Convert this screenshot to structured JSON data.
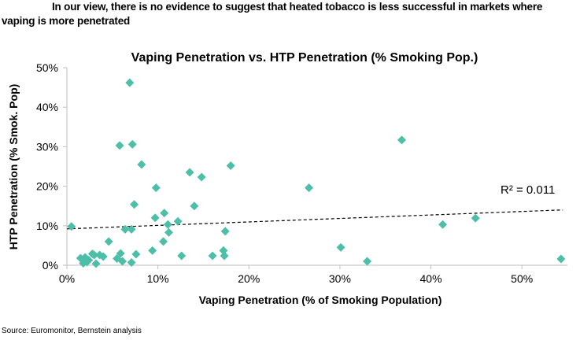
{
  "headline": {
    "line1": "In our view, there is no evidence to suggest that heated tobacco is less successful in markets where",
    "line2": "vaping is more penetrated"
  },
  "source": "Source: Euromonitor, Bernstein analysis",
  "chart_data": {
    "type": "scatter",
    "title": "Vaping Penetration vs. HTP Penetration (% Smoking Pop.)",
    "xlabel": "Vaping Penetration (% of Smoking Population)",
    "ylabel": "HTP Penetration (% Smok. Pop)",
    "xlim": [
      0,
      55
    ],
    "ylim": [
      0,
      50
    ],
    "xticks": [
      0,
      10,
      20,
      30,
      40,
      50
    ],
    "yticks": [
      0,
      10,
      20,
      30,
      40,
      50
    ],
    "xtick_labels": [
      "0%",
      "10%",
      "20%",
      "30%",
      "40%",
      "50%"
    ],
    "ytick_labels": [
      "0%",
      "10%",
      "20%",
      "30%",
      "40%",
      "50%"
    ],
    "grid": false,
    "marker_color": "#4dbfa8",
    "points": [
      {
        "x": 0.5,
        "y": 9.8
      },
      {
        "x": 1.5,
        "y": 1.8
      },
      {
        "x": 1.8,
        "y": 0.5
      },
      {
        "x": 2.0,
        "y": 2.0
      },
      {
        "x": 2.2,
        "y": 0.8
      },
      {
        "x": 2.4,
        "y": 1.3
      },
      {
        "x": 2.8,
        "y": 2.9
      },
      {
        "x": 3.0,
        "y": 2.6
      },
      {
        "x": 3.2,
        "y": 0.4
      },
      {
        "x": 3.6,
        "y": 2.6
      },
      {
        "x": 4.0,
        "y": 2.2
      },
      {
        "x": 4.6,
        "y": 6.0
      },
      {
        "x": 5.5,
        "y": 1.7
      },
      {
        "x": 5.9,
        "y": 3.0
      },
      {
        "x": 6.1,
        "y": 1.0
      },
      {
        "x": 5.8,
        "y": 30.3
      },
      {
        "x": 6.4,
        "y": 9.1
      },
      {
        "x": 6.9,
        "y": 46.2
      },
      {
        "x": 7.1,
        "y": 0.7
      },
      {
        "x": 7.1,
        "y": 9.1
      },
      {
        "x": 7.2,
        "y": 30.6
      },
      {
        "x": 7.4,
        "y": 15.4
      },
      {
        "x": 7.6,
        "y": 2.8
      },
      {
        "x": 8.2,
        "y": 25.5
      },
      {
        "x": 9.4,
        "y": 3.7
      },
      {
        "x": 9.7,
        "y": 12.0
      },
      {
        "x": 9.8,
        "y": 19.6
      },
      {
        "x": 10.6,
        "y": 6.0
      },
      {
        "x": 10.7,
        "y": 13.2
      },
      {
        "x": 11.1,
        "y": 10.3
      },
      {
        "x": 11.2,
        "y": 8.3
      },
      {
        "x": 12.2,
        "y": 11.1
      },
      {
        "x": 12.6,
        "y": 2.4
      },
      {
        "x": 13.5,
        "y": 23.5
      },
      {
        "x": 14.0,
        "y": 15.0
      },
      {
        "x": 14.8,
        "y": 22.3
      },
      {
        "x": 16.0,
        "y": 2.4
      },
      {
        "x": 17.2,
        "y": 3.7
      },
      {
        "x": 17.3,
        "y": 2.4
      },
      {
        "x": 17.4,
        "y": 8.6
      },
      {
        "x": 18.0,
        "y": 25.2
      },
      {
        "x": 26.6,
        "y": 19.6
      },
      {
        "x": 30.1,
        "y": 4.5
      },
      {
        "x": 33.0,
        "y": 1.0
      },
      {
        "x": 36.8,
        "y": 31.7
      },
      {
        "x": 41.3,
        "y": 10.3
      },
      {
        "x": 44.9,
        "y": 11.9
      },
      {
        "x": 54.3,
        "y": 1.6
      }
    ],
    "trendline": {
      "style": "dashed",
      "x": [
        0,
        54.5
      ],
      "y": [
        9.2,
        14.0
      ],
      "label": "R² = 0.011"
    }
  }
}
